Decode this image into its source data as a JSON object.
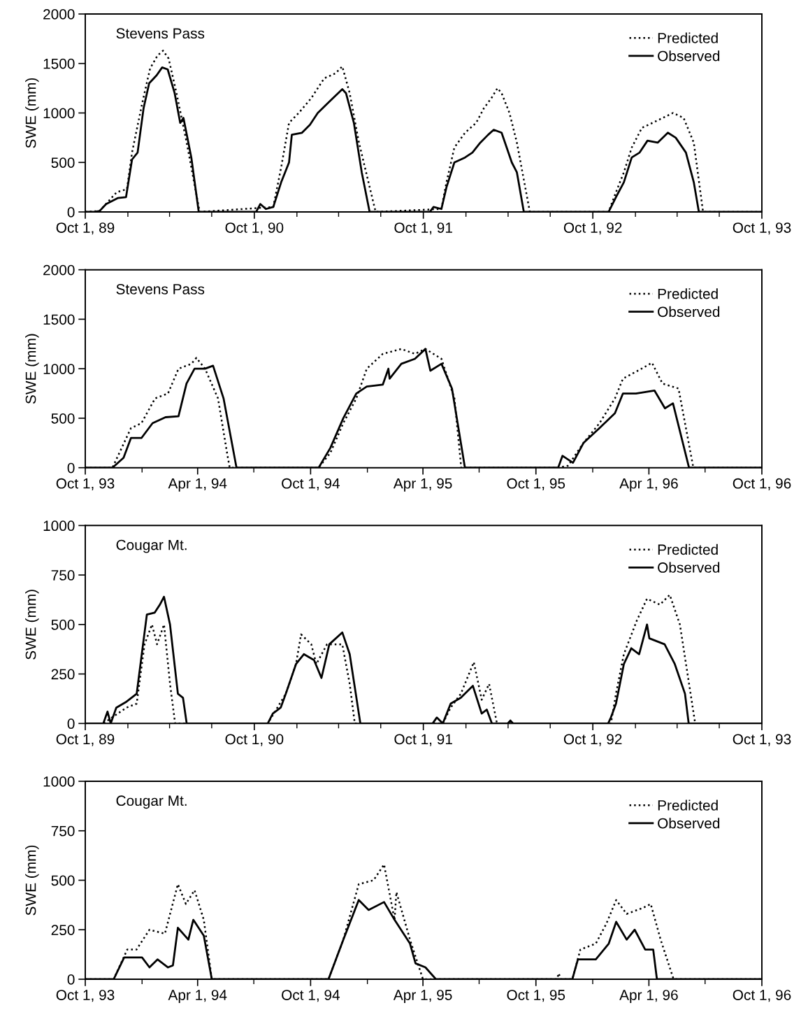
{
  "chart_data": [
    {
      "type": "line",
      "title": "Stevens Pass",
      "ylabel": "SWE (mm)",
      "xlim": [
        "1989-10-01",
        "1993-10-01"
      ],
      "xticks": [
        {
          "value": "1989-10-01",
          "label": "Oct 1, 89"
        },
        {
          "value": "1990-10-01",
          "label": "Oct 1, 90"
        },
        {
          "value": "1991-10-01",
          "label": "Oct 1, 91"
        },
        {
          "value": "1992-10-01",
          "label": "Oct 1, 92"
        },
        {
          "value": "1993-10-01",
          "label": "Oct 1, 93"
        }
      ],
      "ylim": [
        0,
        2000
      ],
      "yticks": [
        0,
        500,
        1000,
        1500,
        2000
      ],
      "legend": "top right",
      "grid": false,
      "series": [
        {
          "name": "Predicted",
          "color": "#000000",
          "line_style": "dotted",
          "x": [
            "1989-10-01",
            "1989-11-01",
            "1989-12-08",
            "1989-12-30",
            "1990-01-10",
            "1990-02-01",
            "1990-02-18",
            "1990-03-06",
            "1990-03-18",
            "1990-03-30",
            "1990-04-16",
            "1990-05-08",
            "1990-06-05",
            "1990-11-11",
            "1990-11-28",
            "1990-12-15",
            "1991-01-05",
            "1991-02-01",
            "1991-03-01",
            "1991-03-25",
            "1991-04-09",
            "1991-04-25",
            "1991-05-15",
            "1991-06-20",
            "1991-11-09",
            "1991-11-20",
            "1991-12-07",
            "1991-12-30",
            "1992-01-23",
            "1992-02-09",
            "1992-02-25",
            "1992-03-09",
            "1992-03-18",
            "1992-04-04",
            "1992-04-20",
            "1992-05-18",
            "1992-11-04",
            "1992-11-20",
            "1992-12-07",
            "1992-12-24",
            "1993-01-15",
            "1993-02-07",
            "1993-03-01",
            "1993-03-23",
            "1993-04-15",
            "1993-05-07",
            "1993-05-27",
            "1993-10-01"
          ],
          "values": [
            0,
            10,
            200,
            230,
            600,
            1100,
            1450,
            1580,
            1630,
            1550,
            1200,
            700,
            0,
            50,
            450,
            900,
            1000,
            1150,
            1350,
            1400,
            1470,
            1200,
            700,
            0,
            30,
            300,
            650,
            800,
            900,
            1050,
            1150,
            1250,
            1200,
            1000,
            700,
            0,
            0,
            200,
            400,
            650,
            850,
            900,
            950,
            1000,
            950,
            700,
            0,
            0
          ]
        },
        {
          "name": "Observed",
          "color": "#000000",
          "line_style": "solid",
          "x": [
            "1989-10-01",
            "1989-10-20",
            "1989-11-01",
            "1989-11-15",
            "1989-12-10",
            "1989-12-28",
            "1990-01-10",
            "1990-01-22",
            "1990-02-04",
            "1990-02-16",
            "1990-03-04",
            "1990-03-16",
            "1990-03-28",
            "1990-04-12",
            "1990-04-24",
            "1990-05-01",
            "1990-05-18",
            "1990-06-03",
            "1990-10-05",
            "1990-10-14",
            "1990-10-26",
            "1990-11-11",
            "1990-11-28",
            "1990-12-15",
            "1990-12-21",
            "1991-01-12",
            "1991-01-29",
            "1991-02-15",
            "1991-03-09",
            "1991-04-09",
            "1991-04-17",
            "1991-05-04",
            "1991-05-21",
            "1991-06-07",
            "1991-10-15",
            "1991-10-23",
            "1991-11-09",
            "1991-11-20",
            "1991-12-07",
            "1991-12-30",
            "1992-01-15",
            "1992-02-01",
            "1992-02-18",
            "1992-03-01",
            "1992-03-18",
            "1992-04-09",
            "1992-04-20",
            "1992-05-05",
            "1992-11-04",
            "1992-11-20",
            "1992-12-07",
            "1992-12-24",
            "1993-01-10",
            "1993-01-27",
            "1993-02-18",
            "1993-03-12",
            "1993-03-29",
            "1993-04-20",
            "1993-05-07",
            "1993-05-18",
            "1993-10-01"
          ],
          "values": [
            0,
            0,
            10,
            80,
            140,
            150,
            530,
            600,
            1050,
            1300,
            1380,
            1460,
            1440,
            1200,
            900,
            950,
            550,
            0,
            0,
            80,
            30,
            50,
            300,
            500,
            780,
            800,
            880,
            1000,
            1100,
            1240,
            1200,
            900,
            400,
            0,
            0,
            50,
            30,
            250,
            500,
            550,
            600,
            700,
            780,
            830,
            800,
            500,
            400,
            0,
            0,
            150,
            300,
            550,
            600,
            720,
            700,
            800,
            750,
            600,
            300,
            0,
            0
          ]
        }
      ]
    },
    {
      "type": "line",
      "title": "Stevens Pass",
      "ylabel": "SWE (mm)",
      "xlim": [
        "1993-10-01",
        "1996-10-01"
      ],
      "xticks": [
        {
          "value": "1993-10-01",
          "label": "Oct 1, 93"
        },
        {
          "value": "1994-04-01",
          "label": "Apr 1, 94"
        },
        {
          "value": "1994-10-01",
          "label": "Oct 1, 94"
        },
        {
          "value": "1995-04-01",
          "label": "Apr 1, 95"
        },
        {
          "value": "1995-10-01",
          "label": "Oct 1, 95"
        },
        {
          "value": "1996-04-01",
          "label": "Apr 1, 96"
        },
        {
          "value": "1996-10-01",
          "label": "Oct 1, 96"
        }
      ],
      "ylim": [
        0,
        2000
      ],
      "yticks": [
        0,
        500,
        1000,
        1500,
        2000
      ],
      "legend": "top right",
      "grid": false,
      "series": [
        {
          "name": "Predicted",
          "color": "#000000",
          "line_style": "dotted",
          "x": [
            "1993-10-01",
            "1993-11-14",
            "1993-12-14",
            "1993-12-31",
            "1994-01-22",
            "1994-02-12",
            "1994-03-01",
            "1994-03-22",
            "1994-03-30",
            "1994-04-13",
            "1994-05-04",
            "1994-05-20",
            "1994-05-23",
            "1994-10-14",
            "1994-11-02",
            "1994-11-23",
            "1994-12-14",
            "1994-12-31",
            "1995-01-26",
            "1995-02-25",
            "1995-03-19",
            "1995-04-05",
            "1995-05-01",
            "1995-05-22",
            "1995-06-02",
            "1995-11-06",
            "1995-11-22",
            "1995-12-17",
            "1996-01-12",
            "1996-02-06",
            "1996-02-19",
            "1996-03-20",
            "1996-04-06",
            "1996-04-23",
            "1996-05-19",
            "1996-06-12",
            "1996-10-01"
          ],
          "values": [
            0,
            0,
            400,
            450,
            700,
            750,
            1000,
            1050,
            1110,
            1000,
            700,
            100,
            0,
            0,
            150,
            450,
            700,
            1000,
            1150,
            1200,
            1150,
            1200,
            1100,
            700,
            0,
            0,
            20,
            250,
            450,
            700,
            900,
            1000,
            1060,
            850,
            800,
            0,
            0
          ]
        },
        {
          "name": "Observed",
          "color": "#000000",
          "line_style": "solid",
          "x": [
            "1993-10-01",
            "1993-11-14",
            "1993-12-02",
            "1993-12-14",
            "1993-12-31",
            "1994-01-18",
            "1994-02-08",
            "1994-03-01",
            "1994-03-14",
            "1994-03-27",
            "1994-04-13",
            "1994-04-26",
            "1994-05-13",
            "1994-05-25",
            "1994-06-03",
            "1994-10-14",
            "1994-11-02",
            "1994-11-23",
            "1994-12-14",
            "1994-12-31",
            "1995-01-26",
            "1995-02-04",
            "1995-02-06",
            "1995-02-25",
            "1995-03-19",
            "1995-04-05",
            "1995-04-13",
            "1995-05-01",
            "1995-05-18",
            "1995-06-08",
            "1995-11-06",
            "1995-11-13",
            "1995-11-30",
            "1995-12-17",
            "1996-01-12",
            "1996-02-06",
            "1996-02-19",
            "1996-03-11",
            "1996-04-10",
            "1996-04-27",
            "1996-05-10",
            "1996-06-05",
            "1996-10-01"
          ],
          "values": [
            0,
            0,
            100,
            300,
            300,
            450,
            510,
            520,
            850,
            1000,
            1000,
            1030,
            700,
            300,
            0,
            0,
            200,
            500,
            750,
            820,
            840,
            1000,
            900,
            1050,
            1100,
            1200,
            980,
            1050,
            800,
            0,
            0,
            120,
            50,
            250,
            400,
            550,
            750,
            750,
            780,
            600,
            650,
            0,
            0
          ]
        }
      ]
    },
    {
      "type": "line",
      "title": "Cougar Mt.",
      "ylabel": "SWE (mm)",
      "xlim": [
        "1989-10-01",
        "1993-10-01"
      ],
      "xticks": [
        {
          "value": "1989-10-01",
          "label": "Oct 1, 89"
        },
        {
          "value": "1990-10-01",
          "label": "Oct 1, 90"
        },
        {
          "value": "1991-10-01",
          "label": "Oct 1, 91"
        },
        {
          "value": "1992-10-01",
          "label": "Oct 1, 92"
        },
        {
          "value": "1993-10-01",
          "label": "Oct 1, 93"
        }
      ],
      "ylim": [
        0,
        1000
      ],
      "yticks": [
        0,
        250,
        500,
        750,
        1000
      ],
      "legend": "top right",
      "grid": false,
      "series": [
        {
          "name": "Predicted",
          "color": "#000000",
          "line_style": "dotted",
          "x": [
            "1989-10-01",
            "1989-11-09",
            "1989-12-29",
            "1990-01-20",
            "1990-02-06",
            "1990-02-22",
            "1990-03-05",
            "1990-03-20",
            "1990-04-02",
            "1990-04-13",
            "1990-10-30",
            "1990-12-08",
            "1990-12-30",
            "1991-01-10",
            "1991-02-01",
            "1991-02-12",
            "1991-03-07",
            "1991-04-09",
            "1991-04-25",
            "1991-05-06",
            "1991-11-12",
            "1991-11-29",
            "1991-12-21",
            "1992-01-18",
            "1992-02-04",
            "1992-02-20",
            "1992-03-08",
            "1992-11-09",
            "1992-11-20",
            "1992-12-07",
            "1993-01-04",
            "1993-01-26",
            "1993-02-23",
            "1993-03-16",
            "1993-04-07",
            "1993-05-10",
            "1993-10-01"
          ],
          "values": [
            0,
            0,
            80,
            100,
            400,
            500,
            400,
            500,
            200,
            0,
            0,
            150,
            300,
            450,
            400,
            300,
            400,
            400,
            200,
            0,
            0,
            80,
            150,
            310,
            120,
            200,
            0,
            0,
            150,
            350,
            520,
            630,
            600,
            650,
            500,
            0,
            0
          ]
        },
        {
          "name": "Observed",
          "color": "#000000",
          "line_style": "solid",
          "x": [
            "1989-10-01",
            "1989-11-09",
            "1989-11-18",
            "1989-11-25",
            "1989-12-07",
            "1989-12-29",
            "1990-01-20",
            "1990-02-11",
            "1990-02-28",
            "1990-03-11",
            "1990-03-20",
            "1990-04-02",
            "1990-04-19",
            "1990-04-30",
            "1990-05-08",
            "1990-10-30",
            "1990-11-10",
            "1990-11-27",
            "1990-12-08",
            "1990-12-30",
            "1991-01-16",
            "1991-02-07",
            "1991-02-23",
            "1991-03-12",
            "1991-04-09",
            "1991-04-25",
            "1991-05-18",
            "1991-10-21",
            "1991-10-30",
            "1991-11-12",
            "1991-11-29",
            "1991-12-21",
            "1992-01-16",
            "1992-02-04",
            "1992-02-15",
            "1992-02-26",
            "1992-03-31",
            "1992-04-06",
            "1992-04-12",
            "1992-11-03",
            "1992-11-09",
            "1992-11-20",
            "1992-12-07",
            "1992-12-23",
            "1993-01-09",
            "1993-01-26",
            "1993-01-31",
            "1993-03-05",
            "1993-03-27",
            "1993-04-18",
            "1993-04-26",
            "1993-10-01"
          ],
          "values": [
            0,
            0,
            60,
            0,
            80,
            110,
            150,
            550,
            560,
            600,
            640,
            500,
            150,
            130,
            0,
            0,
            50,
            80,
            150,
            300,
            350,
            320,
            230,
            400,
            460,
            350,
            0,
            0,
            30,
            0,
            100,
            130,
            190,
            50,
            70,
            0,
            0,
            15,
            0,
            0,
            30,
            100,
            300,
            380,
            350,
            500,
            430,
            400,
            300,
            150,
            0,
            0
          ]
        }
      ]
    },
    {
      "type": "line",
      "title": "Cougar Mt.",
      "ylabel": "SWE (mm)",
      "xlim": [
        "1993-10-01",
        "1996-10-01"
      ],
      "xticks": [
        {
          "value": "1993-10-01",
          "label": "Oct 1, 93"
        },
        {
          "value": "1994-04-01",
          "label": "Apr 1, 94"
        },
        {
          "value": "1994-10-01",
          "label": "Oct 1, 94"
        },
        {
          "value": "1995-04-01",
          "label": "Apr 1, 95"
        },
        {
          "value": "1995-10-01",
          "label": "Oct 1, 95"
        },
        {
          "value": "1996-04-01",
          "label": "Apr 1, 96"
        },
        {
          "value": "1996-10-01",
          "label": "Oct 1, 96"
        }
      ],
      "ylim": [
        0,
        1000
      ],
      "yticks": [
        0,
        250,
        500,
        750,
        1000
      ],
      "legend": "top right",
      "grid": false,
      "series": [
        {
          "name": "Predicted",
          "color": "#000000",
          "line_style": "dotted",
          "x": [
            "1993-10-01",
            "1993-11-16",
            "1993-12-08",
            "1993-12-23",
            "1994-01-13",
            "1994-02-07",
            "1994-02-28",
            "1994-03-13",
            "1994-03-27",
            "1994-04-11",
            "1994-04-24",
            "1994-10-30",
            "1994-11-23",
            "1994-12-18",
            "1995-01-11",
            "1995-01-28",
            "1995-02-14",
            "1995-02-17",
            "1995-03-11",
            "1995-04-01",
            "1995-11-04",
            "1995-11-07",
            "1995-11-10",
            "1995-11-29",
            "1995-12-12",
            "1996-01-06",
            "1996-01-23",
            "1996-02-08",
            "1996-02-25",
            "1996-03-22",
            "1996-04-04",
            "1996-04-20",
            "1996-05-11",
            "1996-10-01"
          ],
          "values": [
            0,
            0,
            150,
            150,
            250,
            230,
            480,
            380,
            450,
            300,
            0,
            0,
            200,
            480,
            500,
            580,
            300,
            440,
            200,
            0,
            0,
            30,
            0,
            0,
            150,
            180,
            280,
            400,
            330,
            360,
            380,
            200,
            0,
            0
          ]
        },
        {
          "name": "Observed",
          "color": "#000000",
          "line_style": "solid",
          "x": [
            "1993-10-01",
            "1993-11-16",
            "1993-12-03",
            "1994-01-01",
            "1994-01-13",
            "1994-01-26",
            "1994-02-12",
            "1994-02-20",
            "1994-02-28",
            "1994-03-17",
            "1994-03-25",
            "1994-04-11",
            "1994-04-24",
            "1994-10-30",
            "1994-11-23",
            "1994-12-18",
            "1995-01-03",
            "1995-01-28",
            "1995-02-14",
            "1995-03-11",
            "1995-03-20",
            "1995-04-05",
            "1995-04-22",
            "1995-11-29",
            "1995-12-08",
            "1996-01-06",
            "1996-01-27",
            "1996-02-08",
            "1996-02-25",
            "1996-03-09",
            "1996-03-26",
            "1996-04-08",
            "1996-04-14",
            "1996-10-01"
          ],
          "values": [
            0,
            0,
            110,
            110,
            60,
            100,
            60,
            70,
            260,
            200,
            300,
            220,
            0,
            0,
            200,
            400,
            350,
            390,
            300,
            180,
            80,
            60,
            0,
            0,
            100,
            100,
            180,
            290,
            200,
            250,
            150,
            150,
            0,
            0
          ]
        }
      ]
    }
  ]
}
